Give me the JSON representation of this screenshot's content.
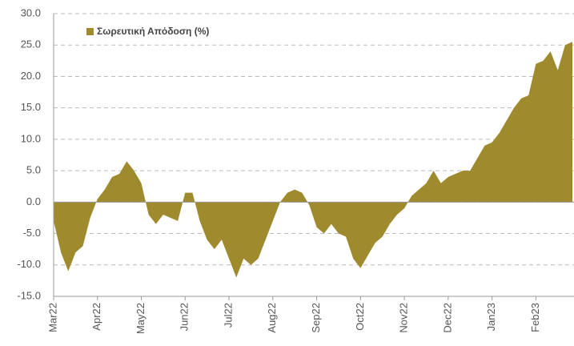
{
  "chart_data": {
    "type": "area",
    "series": [
      {
        "name": "Σωρευτική Απόδοση (%)",
        "color": "#a08a2e",
        "values": [
          -3,
          -8,
          -11,
          -8,
          -7,
          -2.5,
          0.5,
          2,
          4,
          4.5,
          6.5,
          5,
          3,
          -2,
          -3.5,
          -2,
          -2.5,
          -3,
          1.5,
          1.5,
          -3,
          -6,
          -7.5,
          -6,
          -9,
          -12,
          -9,
          -10,
          -9,
          -6,
          -3,
          0,
          1.5,
          2,
          1.5,
          -0.5,
          -4,
          -5,
          -3.5,
          -5,
          -5.5,
          -9,
          -10.5,
          -8.5,
          -6.5,
          -5.5,
          -3.5,
          -2,
          -1,
          1,
          2,
          3,
          5,
          3,
          4,
          4.5,
          5,
          5,
          7,
          9,
          9.5,
          11,
          13,
          15,
          16.5,
          17,
          22,
          22.5,
          24,
          21,
          25,
          25.5
        ]
      }
    ],
    "categories": [
      "Mar22",
      null,
      null,
      null,
      null,
      null,
      "Apr22",
      null,
      null,
      null,
      null,
      null,
      "May22",
      null,
      null,
      null,
      null,
      null,
      "Jun22",
      null,
      null,
      null,
      null,
      null,
      "Jul22",
      null,
      null,
      null,
      null,
      null,
      "Aug22",
      null,
      null,
      null,
      null,
      null,
      "Sep22",
      null,
      null,
      null,
      null,
      null,
      "Oct22",
      null,
      null,
      null,
      null,
      null,
      "Nov22",
      null,
      null,
      null,
      null,
      null,
      "Dec22",
      null,
      null,
      null,
      null,
      null,
      "Jan23",
      null,
      null,
      null,
      null,
      null,
      "Feb23",
      null,
      null,
      null,
      null,
      null
    ],
    "ylim": [
      -15,
      30
    ],
    "yticks": [
      {
        "value": -15,
        "label": "-15.0"
      },
      {
        "value": -10,
        "label": "-10.0"
      },
      {
        "value": -5,
        "label": "-5.0"
      },
      {
        "value": 0,
        "label": "0.0"
      },
      {
        "value": 5,
        "label": "5.0"
      },
      {
        "value": 10,
        "label": "10.0"
      },
      {
        "value": 15,
        "label": "15.0"
      },
      {
        "value": 20,
        "label": "20.0"
      },
      {
        "value": 25,
        "label": "25.0"
      },
      {
        "value": 30,
        "label": "30.0"
      }
    ],
    "grid": true,
    "legend": "upper left"
  }
}
